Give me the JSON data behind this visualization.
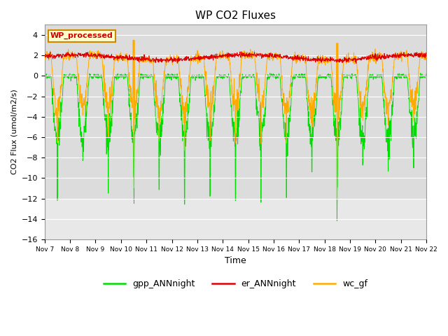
{
  "title": "WP CO2 Fluxes",
  "xlabel": "Time",
  "ylabel": "CO2 Flux (umol/m2/s)",
  "ylim": [
    -16,
    5
  ],
  "yticks": [
    4,
    2,
    0,
    -2,
    -4,
    -6,
    -8,
    -10,
    -12,
    -14,
    -16
  ],
  "bg_color_upper": "#dcdcdc",
  "bg_color_lower": "#e8e8e8",
  "fig_color": "#ffffff",
  "colors": {
    "gpp": "#00dd00",
    "er": "#dd0000",
    "wc": "#ffaa00"
  },
  "legend_labels": [
    "gpp_ANNnight",
    "er_ANNnight",
    "wc_gf"
  ],
  "wp_label": "WP_processed",
  "wp_label_color": "#cc0000",
  "wp_box_facecolor": "#ffffcc",
  "wp_box_edgecolor": "#cc8800",
  "n_points": 1500,
  "x_start": 7,
  "x_end": 22,
  "xtick_positions": [
    7,
    8,
    9,
    10,
    11,
    12,
    13,
    14,
    15,
    16,
    17,
    18,
    19,
    20,
    21,
    22
  ],
  "xtick_labels": [
    "Nov 7",
    "Nov 8",
    "Nov 9",
    "Nov 10",
    "Nov 11",
    "Nov 12",
    "Nov 13",
    "Nov 14",
    "Nov 15",
    "Nov 16",
    "Nov 17",
    "Nov 18",
    "Nov 19",
    "Nov 20",
    "Nov 21",
    "Nov 22"
  ]
}
